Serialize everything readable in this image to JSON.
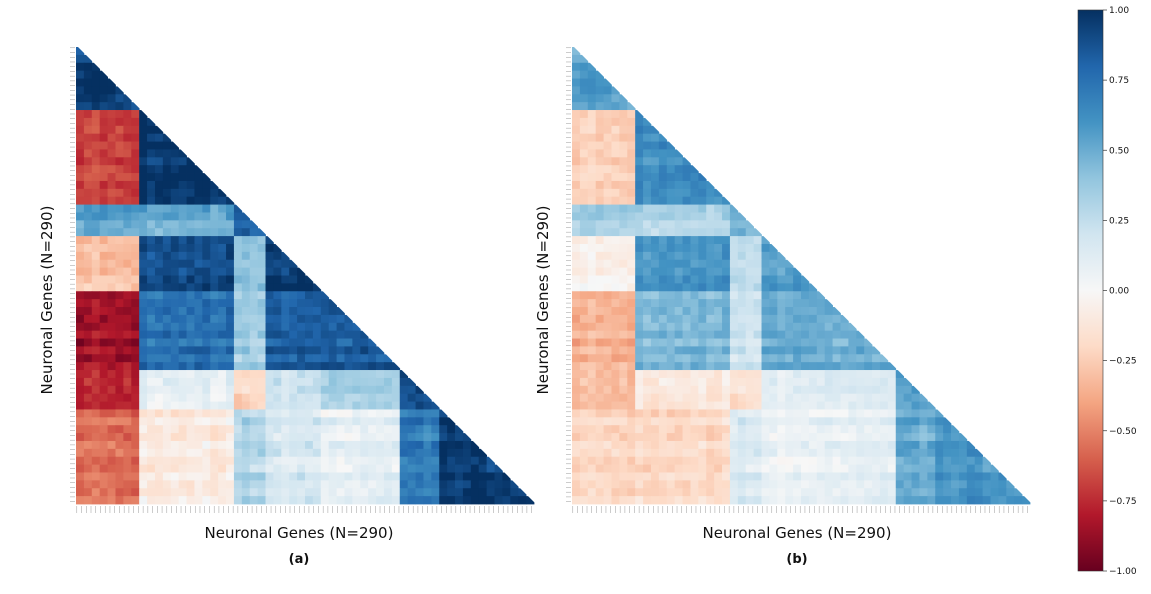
{
  "figure": {
    "colormap": {
      "name": "RdBu",
      "stops": [
        "#67001f",
        "#b2182b",
        "#d6604d",
        "#f4a582",
        "#fddbc7",
        "#f7f7f7",
        "#d1e5f0",
        "#92c5de",
        "#4393c3",
        "#2166ac",
        "#053061"
      ]
    }
  },
  "chart_data": [
    {
      "type": "heatmap",
      "panel_label": "(a)",
      "title": "",
      "xlabel": "Neuronal Genes (N=290)",
      "ylabel": "Neuronal Genes (N=290)",
      "n_genes": 290,
      "layout": "lower-triangular correlation matrix",
      "clim": [
        -1.0,
        1.0
      ],
      "cluster_boundaries": [
        0,
        40,
        100,
        118,
        155,
        205,
        230,
        290
      ],
      "block_mean_correlation": [
        [
          0.95
        ],
        [
          -0.7,
          0.97
        ],
        [
          0.55,
          0.5,
          0.85
        ],
        [
          -0.3,
          0.9,
          0.4,
          0.95
        ],
        [
          -0.85,
          0.75,
          0.35,
          0.82,
          0.85
        ],
        [
          -0.75,
          0.1,
          -0.2,
          0.2,
          0.35,
          0.9
        ],
        [
          -0.55,
          -0.1,
          0.3,
          0.15,
          0.1,
          0.7,
          0.97
        ]
      ]
    },
    {
      "type": "heatmap",
      "panel_label": "(b)",
      "title": "",
      "xlabel": "Neuronal Genes (N=290)",
      "ylabel": "Neuronal Genes (N=290)",
      "n_genes": 290,
      "layout": "lower-triangular correlation matrix",
      "clim": [
        -1.0,
        1.0
      ],
      "cluster_boundaries": [
        0,
        40,
        100,
        118,
        155,
        205,
        230,
        290
      ],
      "block_mean_correlation": [
        [
          0.55
        ],
        [
          -0.25,
          0.62
        ],
        [
          0.35,
          0.3,
          0.5
        ],
        [
          -0.05,
          0.6,
          0.25,
          0.55
        ],
        [
          -0.35,
          0.45,
          0.2,
          0.5,
          0.5
        ],
        [
          -0.3,
          -0.1,
          -0.15,
          0.1,
          0.15,
          0.55
        ],
        [
          -0.2,
          -0.2,
          0.15,
          0.05,
          0.1,
          0.5,
          0.6
        ]
      ]
    }
  ],
  "colorbar": {
    "ticks": [
      1.0,
      0.75,
      0.5,
      0.25,
      0.0,
      -0.25,
      -0.5,
      -0.75,
      -1.0
    ],
    "tick_labels": [
      "1.00",
      "0.75",
      "0.50",
      "0.25",
      "0.00",
      "−0.25",
      "−0.50",
      "−0.75",
      "−1.00"
    ]
  }
}
